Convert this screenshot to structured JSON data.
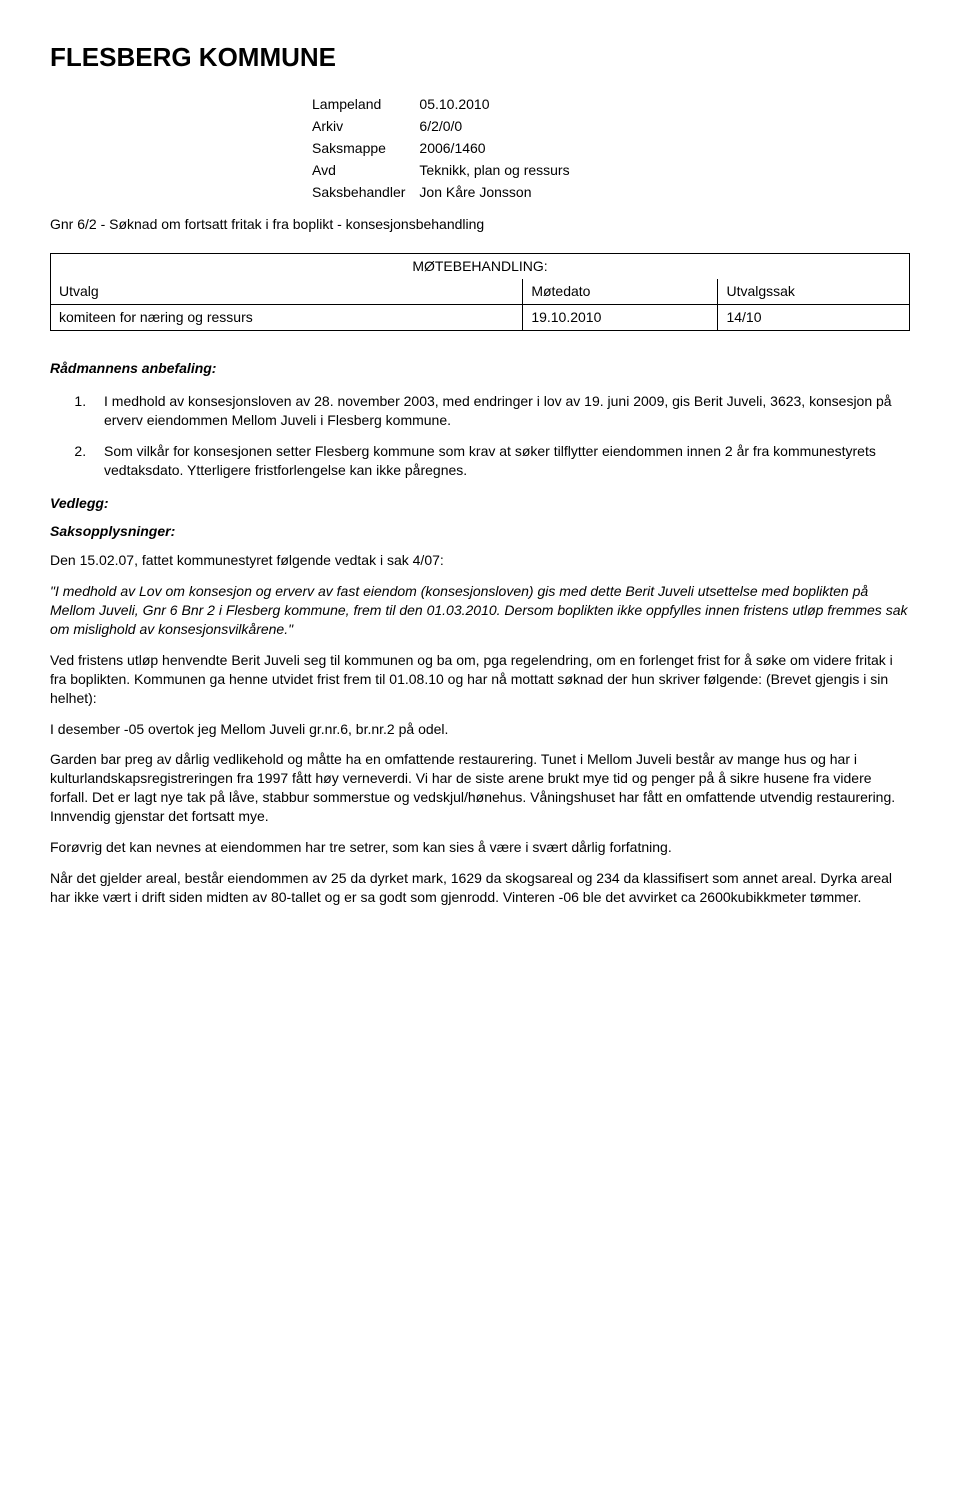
{
  "header": {
    "title": "FLESBERG KOMMUNE"
  },
  "meta": {
    "r1k": "Lampeland",
    "r1v": "05.10.2010",
    "r2k": "Arkiv",
    "r2v": "6/2/0/0",
    "r3k": "Saksmappe",
    "r3v": "2006/1460",
    "r4k": "Avd",
    "r4v": "Teknikk, plan og ressurs",
    "r5k": "Saksbehandler",
    "r5v": "Jon Kåre Jonsson"
  },
  "subtitle": "Gnr 6/2 - Søknad om fortsatt fritak i fra boplikt - konsesjonsbehandling",
  "mote": {
    "heading": "MØTEBEHANDLING:",
    "col1": "Utvalg",
    "col2": "Møtedato",
    "col3": "Utvalgssak",
    "row1c1": "komiteen for næring og ressurs",
    "row1c2": "19.10.2010",
    "row1c3": "14/10"
  },
  "anbefaling_title": "Rådmannens anbefaling:",
  "list": {
    "i1": "I medhold av konsesjonsloven av 28. november 2003, med endringer i lov av 19. juni 2009, gis Berit Juveli, 3623, konsesjon på erverv eiendommen Mellom Juveli i Flesberg kommune.",
    "i2": "Som vilkår for konsesjonen setter Flesberg kommune som krav at søker tilflytter eiendommen innen 2 år fra kommunestyrets vedtaksdato. Ytterligere fristforlengelse kan ikke påregnes."
  },
  "vedlegg": "Vedlegg:",
  "saksopp": "Saksopplysninger:",
  "p1": "Den 15.02.07, fattet kommunestyret følgende vedtak i sak 4/07:",
  "p2": "\"I medhold av Lov om konsesjon og erverv av fast eiendom (konsesjonsloven) gis med dette Berit Juveli utsettelse med boplikten på Mellom Juveli, Gnr 6 Bnr 2 i Flesberg kommune, frem til den 01.03.2010.  Dersom boplikten ikke oppfylles innen fristens utløp fremmes sak om mislighold av konsesjonsvilkårene.\"",
  "p3": "Ved fristens utløp henvendte Berit Juveli seg til kommunen og ba om, pga regelendring, om en forlenget frist for å søke om videre fritak i fra boplikten.  Kommunen ga henne utvidet frist frem til 01.08.10 og har nå mottatt søknad der hun skriver følgende: (Brevet gjengis i sin helhet):",
  "p4": "I desember -05 overtok jeg Mellom Juveli gr.nr.6, br.nr.2 på odel.",
  "p5": "Garden bar preg av dårlig vedlikehold og måtte ha en omfattende restaurering. Tunet i Mellom Juveli består av mange hus og har i kulturlandskapsregistreringen fra 1997 fått høy verneverdi. Vi har de siste arene brukt mye tid og penger på å sikre husene fra videre forfall. Det er lagt nye tak på låve, stabbur sommerstue og vedskjul/hønehus. Våningshuset har fått en omfattende utvendig restaurering. Innvendig gjenstar det fortsatt mye.",
  "p6": "Forøvrig det kan nevnes at eiendommen har tre setrer, som kan sies å være i svært dårlig forfatning.",
  "p7": "Når det gjelder areal, består eiendommen av 25 da dyrket mark, 1629 da skogsareal og 234 da klassifisert som annet areal. Dyrka areal har ikke vært i drift siden midten av 80-tallet og er sa godt som gjenrodd. Vinteren -06 ble det avvirket ca 2600kubikkmeter tømmer."
}
